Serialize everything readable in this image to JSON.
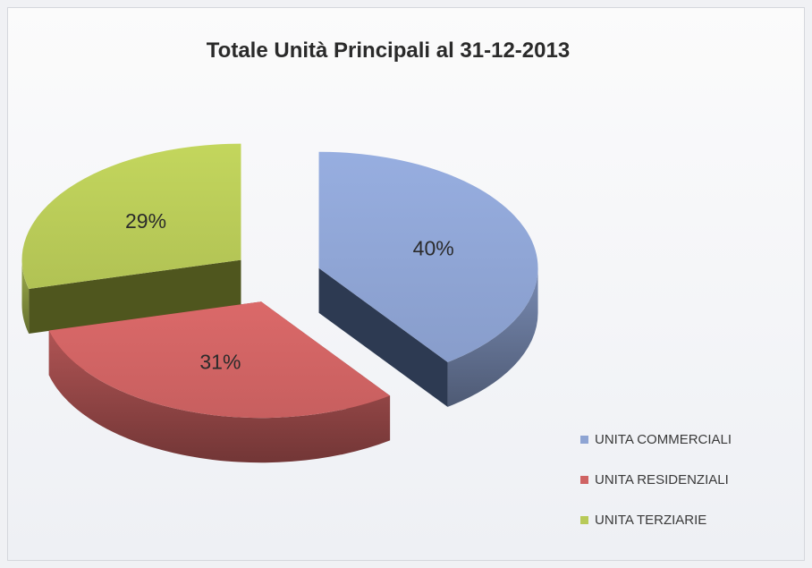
{
  "chart_data": {
    "type": "pie",
    "title": "Totale Unità Principali al 31-12-2013",
    "three_d": true,
    "exploded": true,
    "legend_position": "bottom-right",
    "slices": [
      {
        "label": "UNITA COMMERCIALI",
        "value": 40,
        "display": "40%",
        "color": "#8ea4d3",
        "side_color": "#2d3a52"
      },
      {
        "label": "UNITA RESIDENZIALI",
        "value": 31,
        "display": "31%",
        "color": "#cf6363",
        "side_color": "#7c3030"
      },
      {
        "label": "UNITA TERZIARIE",
        "value": 29,
        "display": "29%",
        "color": "#b8ca58",
        "side_color": "#4b521d"
      }
    ]
  }
}
